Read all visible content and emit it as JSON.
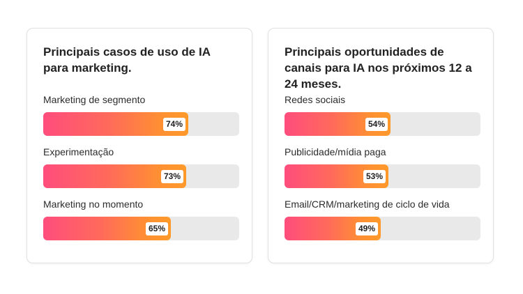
{
  "chart_data": [
    {
      "type": "bar",
      "title": "Principais casos de uso de IA para marketing.",
      "categories": [
        "Marketing de segmento",
        "Experimentação",
        "Marketing no momento"
      ],
      "values": [
        74,
        73,
        65
      ],
      "value_labels": [
        "74%",
        "73%",
        "65%"
      ],
      "ylim": [
        0,
        100
      ]
    },
    {
      "type": "bar",
      "title": "Principais oportunidades de canais para IA nos próximos 12 a 24 meses.",
      "categories": [
        "Redes sociais",
        "Publicidade/mídia paga",
        "Email/CRM/marketing de ciclo de vida"
      ],
      "values": [
        54,
        53,
        49
      ],
      "value_labels": [
        "54%",
        "53%",
        "49%"
      ],
      "ylim": [
        0,
        100
      ]
    }
  ],
  "colors": {
    "bar_gradient_start": "#ff4d7d",
    "bar_gradient_end": "#ff9a2a",
    "track": "#e9e9e9"
  }
}
